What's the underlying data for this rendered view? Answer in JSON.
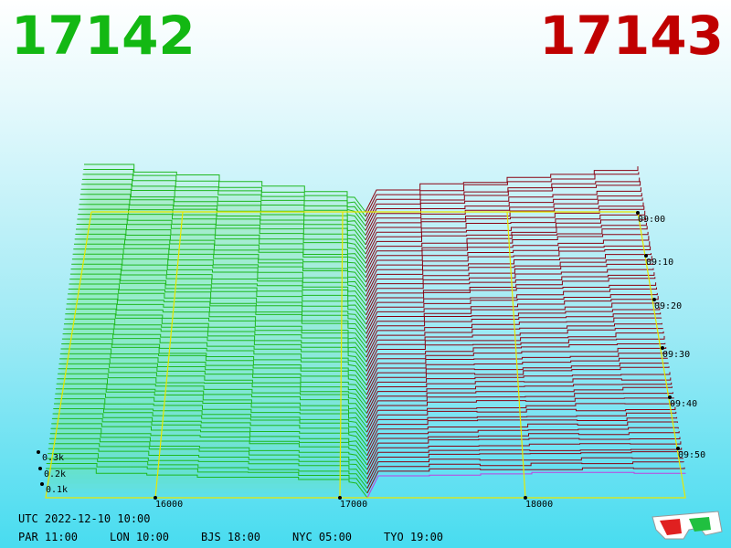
{
  "header": {
    "bid": "17142",
    "ask": "17143"
  },
  "price_axis": [
    "16000",
    "17000",
    "18000"
  ],
  "volume_axis": [
    "0.3k",
    "0.2k",
    "0.1k"
  ],
  "time_axis": [
    "09:00",
    "09:10",
    "09:20",
    "09:30",
    "09:40",
    "09:50"
  ],
  "footer": {
    "utc": "UTC 2022-12-10 10:00",
    "cities": [
      "PAR 11:00",
      "LON 10:00",
      "BJS 18:00",
      "NYC 05:00",
      "TYO 19:00"
    ]
  }
}
